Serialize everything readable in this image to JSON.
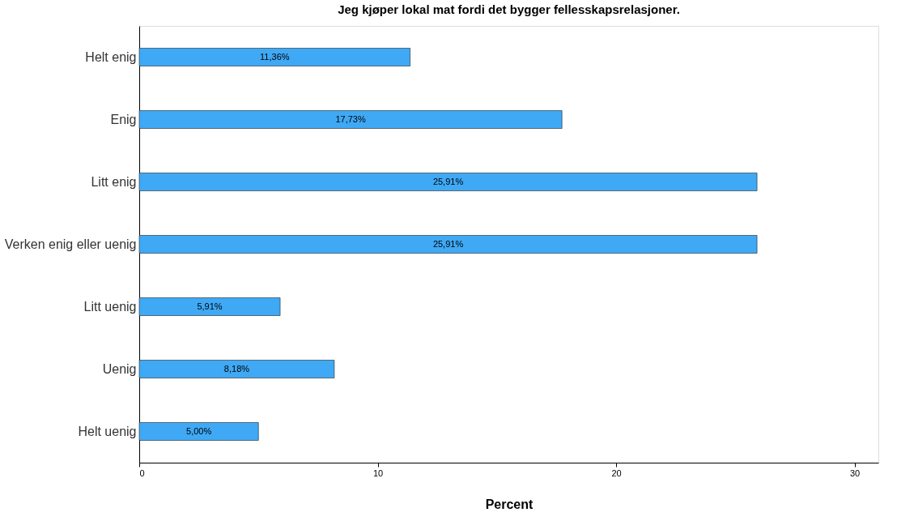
{
  "chart_data": {
    "type": "bar",
    "orientation": "horizontal",
    "title": "Jeg kjøper lokal mat fordi det bygger fellesskapsrelasjoner.",
    "xlabel": "Percent",
    "categories": [
      "Helt enig",
      "Enig",
      "Litt enig",
      "Verken enig eller uenig",
      "Litt uenig",
      "Uenig",
      "Helt uenig"
    ],
    "values": [
      11.36,
      17.73,
      25.91,
      25.91,
      5.91,
      8.18,
      5.0
    ],
    "value_labels": [
      "11,36%",
      "17,73%",
      "25,91%",
      "25,91%",
      "5,91%",
      "8,18%",
      "5,00%"
    ],
    "color": "#3fa9f5",
    "xlim": [
      0,
      31
    ],
    "xticks": [
      0,
      10,
      20,
      30
    ],
    "grid": false
  }
}
